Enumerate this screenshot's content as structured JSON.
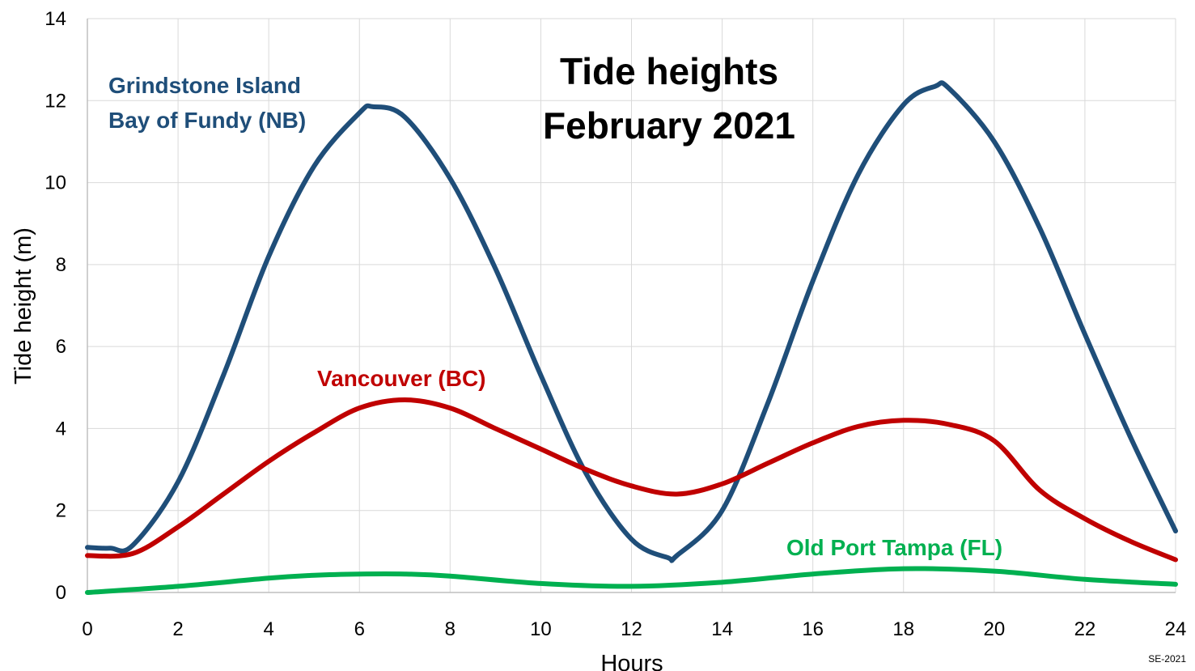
{
  "chart_data": {
    "type": "line",
    "title": "Tide heights February 2021",
    "title_lines": [
      "Tide heights",
      "February 2021"
    ],
    "xlabel": "Hours",
    "ylabel": "Tide height (m)",
    "xlim": [
      0,
      24
    ],
    "ylim": [
      0,
      14
    ],
    "x_ticks": [
      0,
      2,
      4,
      6,
      8,
      10,
      12,
      14,
      16,
      18,
      20,
      22,
      24
    ],
    "y_ticks": [
      0,
      2,
      4,
      6,
      8,
      10,
      12,
      14
    ],
    "grid": true,
    "legend": "inline labels",
    "credit": "SE-2021",
    "series": [
      {
        "name": "Grindstone Island Bay of Fundy (NB)",
        "label_lines": [
          "Grindstone Island",
          "Bay of Fundy (NB)"
        ],
        "color": "#1f4e79",
        "x": [
          0,
          0.5,
          1,
          2,
          3,
          4,
          5,
          6,
          6.3,
          7,
          8,
          9,
          10,
          11,
          12,
          12.8,
          13,
          14,
          15,
          16,
          17,
          18,
          18.7,
          19,
          20,
          21,
          22,
          23,
          24
        ],
        "values": [
          1.1,
          1.08,
          1.15,
          2.7,
          5.3,
          8.2,
          10.4,
          11.7,
          11.85,
          11.6,
          10.1,
          7.9,
          5.3,
          2.9,
          1.3,
          0.85,
          0.9,
          2.0,
          4.6,
          7.6,
          10.2,
          11.9,
          12.35,
          12.3,
          11.0,
          8.9,
          6.3,
          3.8,
          1.5
        ]
      },
      {
        "name": "Vancouver (BC)",
        "label_lines": [
          "Vancouver (BC)"
        ],
        "color": "#c00000",
        "x": [
          0,
          1,
          2,
          3,
          4,
          5,
          6,
          7,
          8,
          9,
          10,
          11,
          12,
          13,
          14,
          15,
          16,
          17,
          18,
          19,
          20,
          21,
          22,
          23,
          24
        ],
        "values": [
          0.9,
          0.95,
          1.6,
          2.4,
          3.2,
          3.9,
          4.5,
          4.7,
          4.5,
          4.0,
          3.5,
          3.0,
          2.6,
          2.4,
          2.65,
          3.15,
          3.65,
          4.05,
          4.2,
          4.1,
          3.7,
          2.5,
          1.8,
          1.25,
          0.8
        ]
      },
      {
        "name": "Old Port Tampa (FL)",
        "label_lines": [
          "Old Port Tampa (FL)"
        ],
        "color": "#00b050",
        "x": [
          0,
          2,
          4,
          5,
          6,
          7,
          8,
          10,
          12,
          14,
          16,
          18,
          20,
          22,
          24
        ],
        "values": [
          0.0,
          0.15,
          0.35,
          0.42,
          0.45,
          0.45,
          0.4,
          0.22,
          0.15,
          0.25,
          0.45,
          0.58,
          0.52,
          0.32,
          0.2
        ]
      }
    ]
  }
}
